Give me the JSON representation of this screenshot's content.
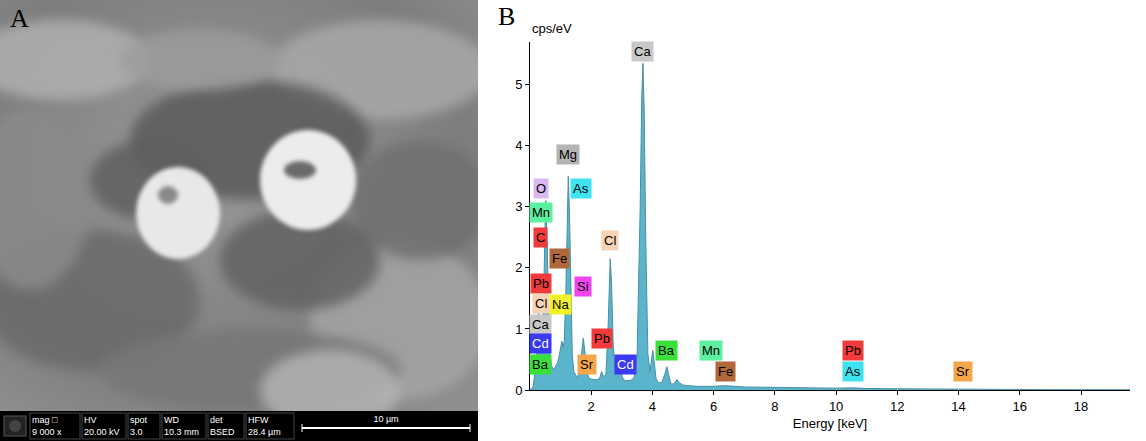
{
  "panel_a": {
    "label": "A",
    "info_bar": [
      {
        "name": "mag □",
        "value": "9 000 x"
      },
      {
        "name": "HV",
        "value": "20.00 kV"
      },
      {
        "name": "spot",
        "value": "3.0"
      },
      {
        "name": "WD",
        "value": "10.3 mm"
      },
      {
        "name": "det",
        "value": "BSED"
      },
      {
        "name": "HFW",
        "value": "28.4 µm"
      }
    ],
    "scale_bar": "10 µm"
  },
  "chart_data": {
    "type": "area",
    "panel_label": "B",
    "x_label": "Energy [keV]",
    "y_label": "cps/eV",
    "x": [
      0.0,
      0.1,
      0.2,
      0.25,
      0.28,
      0.32,
      0.36,
      0.4,
      0.45,
      0.5,
      0.52,
      0.55,
      0.6,
      0.65,
      0.7,
      0.75,
      0.8,
      0.85,
      0.9,
      0.95,
      1.0,
      1.04,
      1.08,
      1.12,
      1.17,
      1.21,
      1.25,
      1.29,
      1.33,
      1.38,
      1.43,
      1.48,
      1.55,
      1.62,
      1.68,
      1.74,
      1.8,
      1.86,
      1.92,
      2.0,
      2.1,
      2.2,
      2.28,
      2.34,
      2.4,
      2.48,
      2.55,
      2.6,
      2.62,
      2.66,
      2.72,
      2.8,
      2.9,
      2.96,
      3.02,
      3.1,
      3.2,
      3.3,
      3.4,
      3.5,
      3.6,
      3.65,
      3.69,
      3.73,
      3.78,
      3.85,
      3.92,
      3.97,
      4.01,
      4.06,
      4.12,
      4.2,
      4.3,
      4.4,
      4.47,
      4.53,
      4.6,
      4.7,
      4.8,
      4.87,
      5.0,
      5.2,
      5.5,
      5.9,
      6.4,
      7.0,
      8.0,
      9.0,
      10.0,
      10.55,
      11.0,
      12.0,
      13.0,
      14.0,
      15.0,
      16.0,
      17.0,
      18.0,
      19.0,
      19.6
    ],
    "values": [
      0,
      0.05,
      0.4,
      1.0,
      1.3,
      0.9,
      0.7,
      0.8,
      1.6,
      2.9,
      3.1,
      2.6,
      1.3,
      0.6,
      0.4,
      0.35,
      0.35,
      0.4,
      0.45,
      0.55,
      0.7,
      0.8,
      0.7,
      0.8,
      1.6,
      2.8,
      3.5,
      2.9,
      1.6,
      0.6,
      0.3,
      0.25,
      0.2,
      0.3,
      0.6,
      0.85,
      0.6,
      0.3,
      0.2,
      0.18,
      0.17,
      0.17,
      0.2,
      0.3,
      0.22,
      0.25,
      1.0,
      1.9,
      2.15,
      1.8,
      0.7,
      0.25,
      0.3,
      0.35,
      0.2,
      0.15,
      0.15,
      0.16,
      0.2,
      0.6,
      3.0,
      4.8,
      5.35,
      4.6,
      2.5,
      0.6,
      0.3,
      0.55,
      0.65,
      0.45,
      0.18,
      0.12,
      0.12,
      0.25,
      0.38,
      0.25,
      0.1,
      0.1,
      0.17,
      0.12,
      0.08,
      0.07,
      0.06,
      0.06,
      0.07,
      0.05,
      0.04,
      0.035,
      0.03,
      0.035,
      0.025,
      0.02,
      0.015,
      0.012,
      0.01,
      0.008,
      0.006,
      0.005,
      0.004,
      0.003
    ],
    "color": "#5ab4cc",
    "xlim": [
      0,
      19.6
    ],
    "xticks": [
      2,
      4,
      6,
      8,
      10,
      12,
      14,
      16,
      18
    ],
    "ylim": [
      0,
      5.7
    ],
    "yticks": [
      0,
      1,
      2,
      3,
      4,
      5
    ],
    "grid": false,
    "annotations": [
      {
        "text": "Ca",
        "x": 3.69,
        "y": 5.55,
        "color": "#c8c8c8"
      },
      {
        "text": "Mg",
        "x": 1.25,
        "y": 3.85,
        "color": "#b4b4b4"
      },
      {
        "text": "O",
        "x": 0.35,
        "y": 3.3,
        "color": "#d9b8f2"
      },
      {
        "text": "As",
        "x": 1.65,
        "y": 3.3,
        "color": "#3fe3f0"
      },
      {
        "text": "Mn",
        "x": 0.35,
        "y": 2.9,
        "color": "#5cf0a0"
      },
      {
        "text": "C",
        "x": 0.35,
        "y": 2.5,
        "color": "#f23a3a"
      },
      {
        "text": "Cl",
        "x": 2.62,
        "y": 2.45,
        "color": "#f8d2b4"
      },
      {
        "text": "Fe",
        "x": 0.95,
        "y": 2.15,
        "color": "#b0683a"
      },
      {
        "text": "Pb",
        "x": 0.35,
        "y": 1.75,
        "color": "#f23a3a"
      },
      {
        "text": "Si",
        "x": 1.74,
        "y": 1.7,
        "color": "#f044f0"
      },
      {
        "text": "Cl",
        "x": 0.35,
        "y": 1.42,
        "color": "#f8d2b4"
      },
      {
        "text": "Na",
        "x": 1.0,
        "y": 1.4,
        "color": "#f2f22a"
      },
      {
        "text": "Ca",
        "x": 0.35,
        "y": 1.08,
        "color": "#c8c8c8"
      },
      {
        "text": "Pb",
        "x": 2.34,
        "y": 0.85,
        "color": "#f23a3a"
      },
      {
        "text": "Cd",
        "x": 0.35,
        "y": 0.76,
        "color": "#3a3af2"
      },
      {
        "text": "Ba",
        "x": 4.47,
        "y": 0.65,
        "color": "#3ae03a"
      },
      {
        "text": "Mn",
        "x": 5.9,
        "y": 0.65,
        "color": "#5cf0a0"
      },
      {
        "text": "Pb",
        "x": 10.55,
        "y": 0.65,
        "color": "#f23a3a"
      },
      {
        "text": "Ba",
        "x": 0.35,
        "y": 0.42,
        "color": "#3ae03a"
      },
      {
        "text": "Sr",
        "x": 1.85,
        "y": 0.42,
        "color": "#f5a64a"
      },
      {
        "text": "Cd",
        "x": 3.13,
        "y": 0.42,
        "color": "#3a3af2"
      },
      {
        "text": "Fe",
        "x": 6.4,
        "y": 0.3,
        "color": "#b0683a"
      },
      {
        "text": "As",
        "x": 10.55,
        "y": 0.3,
        "color": "#3fe3f0"
      },
      {
        "text": "Sr",
        "x": 14.16,
        "y": 0.3,
        "color": "#f5a64a"
      }
    ]
  }
}
